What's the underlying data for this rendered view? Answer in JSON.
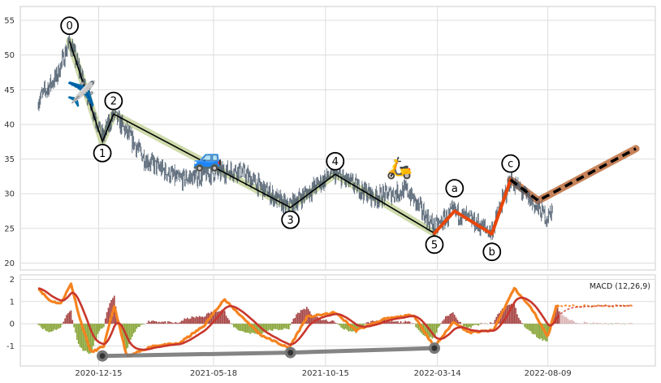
{
  "chart_data": [
    {
      "type": "candlestick",
      "title": "",
      "xlabel": "",
      "ylabel": "",
      "x_tick_labels": [
        "2020-12-15",
        "2021-05-18",
        "2021-10-15",
        "2022-03-14",
        "2022-08-09"
      ],
      "x_range": [
        "2020-09-01",
        "2022-12-31"
      ],
      "ylim": [
        19,
        57
      ],
      "y_ticks": [
        20,
        25,
        30,
        35,
        40,
        45,
        50,
        55
      ],
      "grid": true,
      "price_anchors": [
        {
          "date": "2020-09-25",
          "price": 43.5
        },
        {
          "date": "2020-10-20",
          "price": 47
        },
        {
          "date": "2020-11-06",
          "price": 52
        },
        {
          "date": "2020-11-25",
          "price": 46
        },
        {
          "date": "2020-12-20",
          "price": 38
        },
        {
          "date": "2021-01-04",
          "price": 41.5
        },
        {
          "date": "2021-02-15",
          "price": 35
        },
        {
          "date": "2021-04-01",
          "price": 32
        },
        {
          "date": "2021-05-18",
          "price": 33
        },
        {
          "date": "2021-06-20",
          "price": 33.5
        },
        {
          "date": "2021-08-25",
          "price": 28
        },
        {
          "date": "2021-10-25",
          "price": 33
        },
        {
          "date": "2021-12-20",
          "price": 29.5
        },
        {
          "date": "2022-02-01",
          "price": 30.5
        },
        {
          "date": "2022-03-10",
          "price": 25
        },
        {
          "date": "2022-04-05",
          "price": 27.5
        },
        {
          "date": "2022-05-25",
          "price": 24.5
        },
        {
          "date": "2022-06-20",
          "price": 32
        },
        {
          "date": "2022-07-25",
          "price": 28
        },
        {
          "date": "2022-08-09",
          "price": 26.5
        },
        {
          "date": "2022-08-15",
          "price": 28
        }
      ],
      "impulse_wave": {
        "labels": [
          "0",
          "1",
          "2",
          "3",
          "4",
          "5"
        ],
        "points": [
          {
            "date": "2020-11-06",
            "price": 52
          },
          {
            "date": "2020-12-20",
            "price": 37.5
          },
          {
            "date": "2021-01-04",
            "price": 41.5
          },
          {
            "date": "2021-08-29",
            "price": 28
          },
          {
            "date": "2021-10-28",
            "price": 32.8
          },
          {
            "date": "2022-03-10",
            "price": 24.3
          }
        ]
      },
      "corrective_wave": {
        "labels": [
          "a",
          "b",
          "c"
        ],
        "points": [
          {
            "date": "2022-03-10",
            "price": 24.3
          },
          {
            "date": "2022-04-06",
            "price": 27.5
          },
          {
            "date": "2022-05-26",
            "price": 24.2
          },
          {
            "date": "2022-06-20",
            "price": 32
          }
        ]
      },
      "projection": {
        "points": [
          {
            "date": "2022-06-20",
            "price": 32
          },
          {
            "date": "2022-07-27",
            "price": 29
          },
          {
            "date": "2022-12-05",
            "price": 36.5
          }
        ]
      },
      "emoji_markers": [
        "✈️",
        "🚙",
        "🛵"
      ],
      "colors": {
        "candles": "#4a5a6b",
        "impulse_line": "#000000",
        "impulse_highlight": "#c5d49c",
        "corrective_line": "#e8460a",
        "projection_line": "#000000",
        "projection_highlight": "#c8835a"
      }
    },
    {
      "type": "macd",
      "legend": "MACD (12,26,9)",
      "legend_position": "top-right",
      "ylim": [
        -1.9,
        2.2
      ],
      "y_ticks": [
        -1,
        0,
        1,
        2
      ],
      "grid": true,
      "macd_anchors": [
        {
          "date": "2020-09-25",
          "value": 1.6
        },
        {
          "date": "2020-10-10",
          "value": 1.05
        },
        {
          "date": "2020-10-25",
          "value": 0.9
        },
        {
          "date": "2020-11-08",
          "value": 1.8
        },
        {
          "date": "2020-11-20",
          "value": 0.2
        },
        {
          "date": "2020-12-05",
          "value": -1.3
        },
        {
          "date": "2020-12-22",
          "value": -1.0
        },
        {
          "date": "2021-01-05",
          "value": 0.8
        },
        {
          "date": "2021-01-22",
          "value": -1.5
        },
        {
          "date": "2021-02-25",
          "value": -1.0
        },
        {
          "date": "2021-04-01",
          "value": -0.9
        },
        {
          "date": "2021-05-05",
          "value": -0.1
        },
        {
          "date": "2021-06-01",
          "value": 1.1
        },
        {
          "date": "2021-07-20",
          "value": -0.5
        },
        {
          "date": "2021-08-27",
          "value": -1.1
        },
        {
          "date": "2021-09-20",
          "value": 0.3
        },
        {
          "date": "2021-10-28",
          "value": 0.5
        },
        {
          "date": "2021-11-25",
          "value": -0.3
        },
        {
          "date": "2022-01-01",
          "value": 0.2
        },
        {
          "date": "2022-02-10",
          "value": 0.4
        },
        {
          "date": "2022-03-10",
          "value": -1.05
        },
        {
          "date": "2022-04-05",
          "value": 0.1
        },
        {
          "date": "2022-04-25",
          "value": -0.4
        },
        {
          "date": "2022-05-28",
          "value": -0.3
        },
        {
          "date": "2022-06-25",
          "value": 1.6
        },
        {
          "date": "2022-07-20",
          "value": 0.6
        },
        {
          "date": "2022-08-09",
          "value": -0.6
        },
        {
          "date": "2022-08-20",
          "value": 0.8
        },
        {
          "date": "2022-09-10",
          "value": 0.8
        },
        {
          "date": "2022-11-30",
          "value": 0.8
        }
      ],
      "trend_line": [
        {
          "date": "2020-12-20",
          "value": -1.45
        },
        {
          "date": "2021-08-29",
          "value": -1.3
        },
        {
          "date": "2022-03-10",
          "value": -1.1
        }
      ],
      "colors": {
        "macd_line": "#f5821f",
        "signal_line": "#c8372d",
        "hist_positive": "#9b2c2c",
        "hist_negative": "#7a9a1f",
        "trend_line": "#777777"
      }
    }
  ]
}
